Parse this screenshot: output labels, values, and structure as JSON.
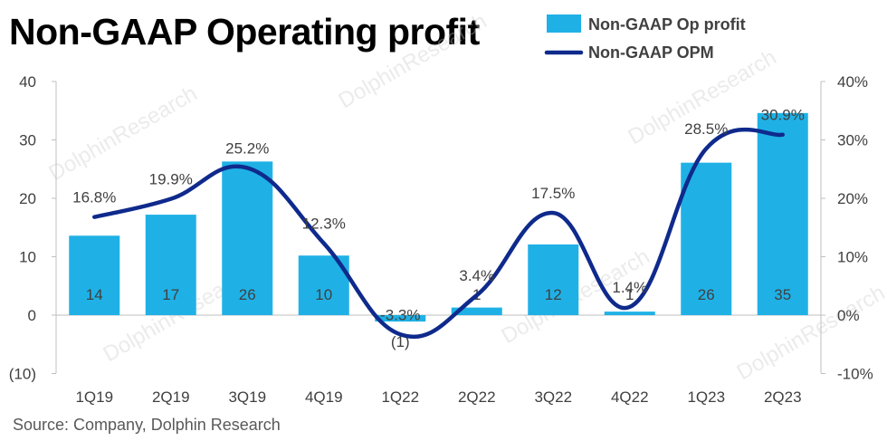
{
  "title": "Non-GAAP Operating profit",
  "source": "Source: Company, Dolphin Research",
  "watermark": "DolphinResearch",
  "colors": {
    "bar": "#1fb1e6",
    "line": "#0f2a8c",
    "axis": "#bfbfbf"
  },
  "chart_data": {
    "type": "bar",
    "categories": [
      "1Q19",
      "2Q19",
      "3Q19",
      "4Q19",
      "1Q22",
      "2Q22",
      "3Q22",
      "4Q22",
      "1Q23",
      "2Q23"
    ],
    "series": [
      {
        "name": "Non-GAAP Op profit",
        "type": "bar",
        "axis": "left",
        "values": [
          13.6,
          17.2,
          26.3,
          10.2,
          -1.1,
          1.3,
          12.1,
          0.6,
          26.1,
          34.6
        ],
        "labels": [
          "14",
          "17",
          "26",
          "10",
          "(1)",
          "1",
          "12",
          "1",
          "26",
          "35"
        ]
      },
      {
        "name": "Non-GAAP OPM",
        "type": "line",
        "axis": "right",
        "values": [
          16.8,
          19.9,
          25.2,
          12.3,
          -3.3,
          3.4,
          17.5,
          1.4,
          28.5,
          30.9
        ],
        "labels": [
          "16.8%",
          "19.9%",
          "25.2%",
          "12.3%",
          "-3.3%",
          "3.4%",
          "17.5%",
          "1.4%",
          "28.5%",
          "30.9%"
        ]
      }
    ],
    "yleft": {
      "ylim": [
        -10,
        40
      ],
      "ticks": [
        40,
        30,
        20,
        10,
        0,
        -10
      ],
      "tick_labels": [
        "40",
        "30",
        "20",
        "10",
        "0",
        "(10)"
      ]
    },
    "yright": {
      "ylim": [
        -10,
        40
      ],
      "ticks": [
        40,
        30,
        20,
        10,
        0,
        -10
      ],
      "tick_labels": [
        "40%",
        "30%",
        "20%",
        "10%",
        "0%",
        "-10%"
      ]
    },
    "legend": "top-right",
    "grid": false
  }
}
